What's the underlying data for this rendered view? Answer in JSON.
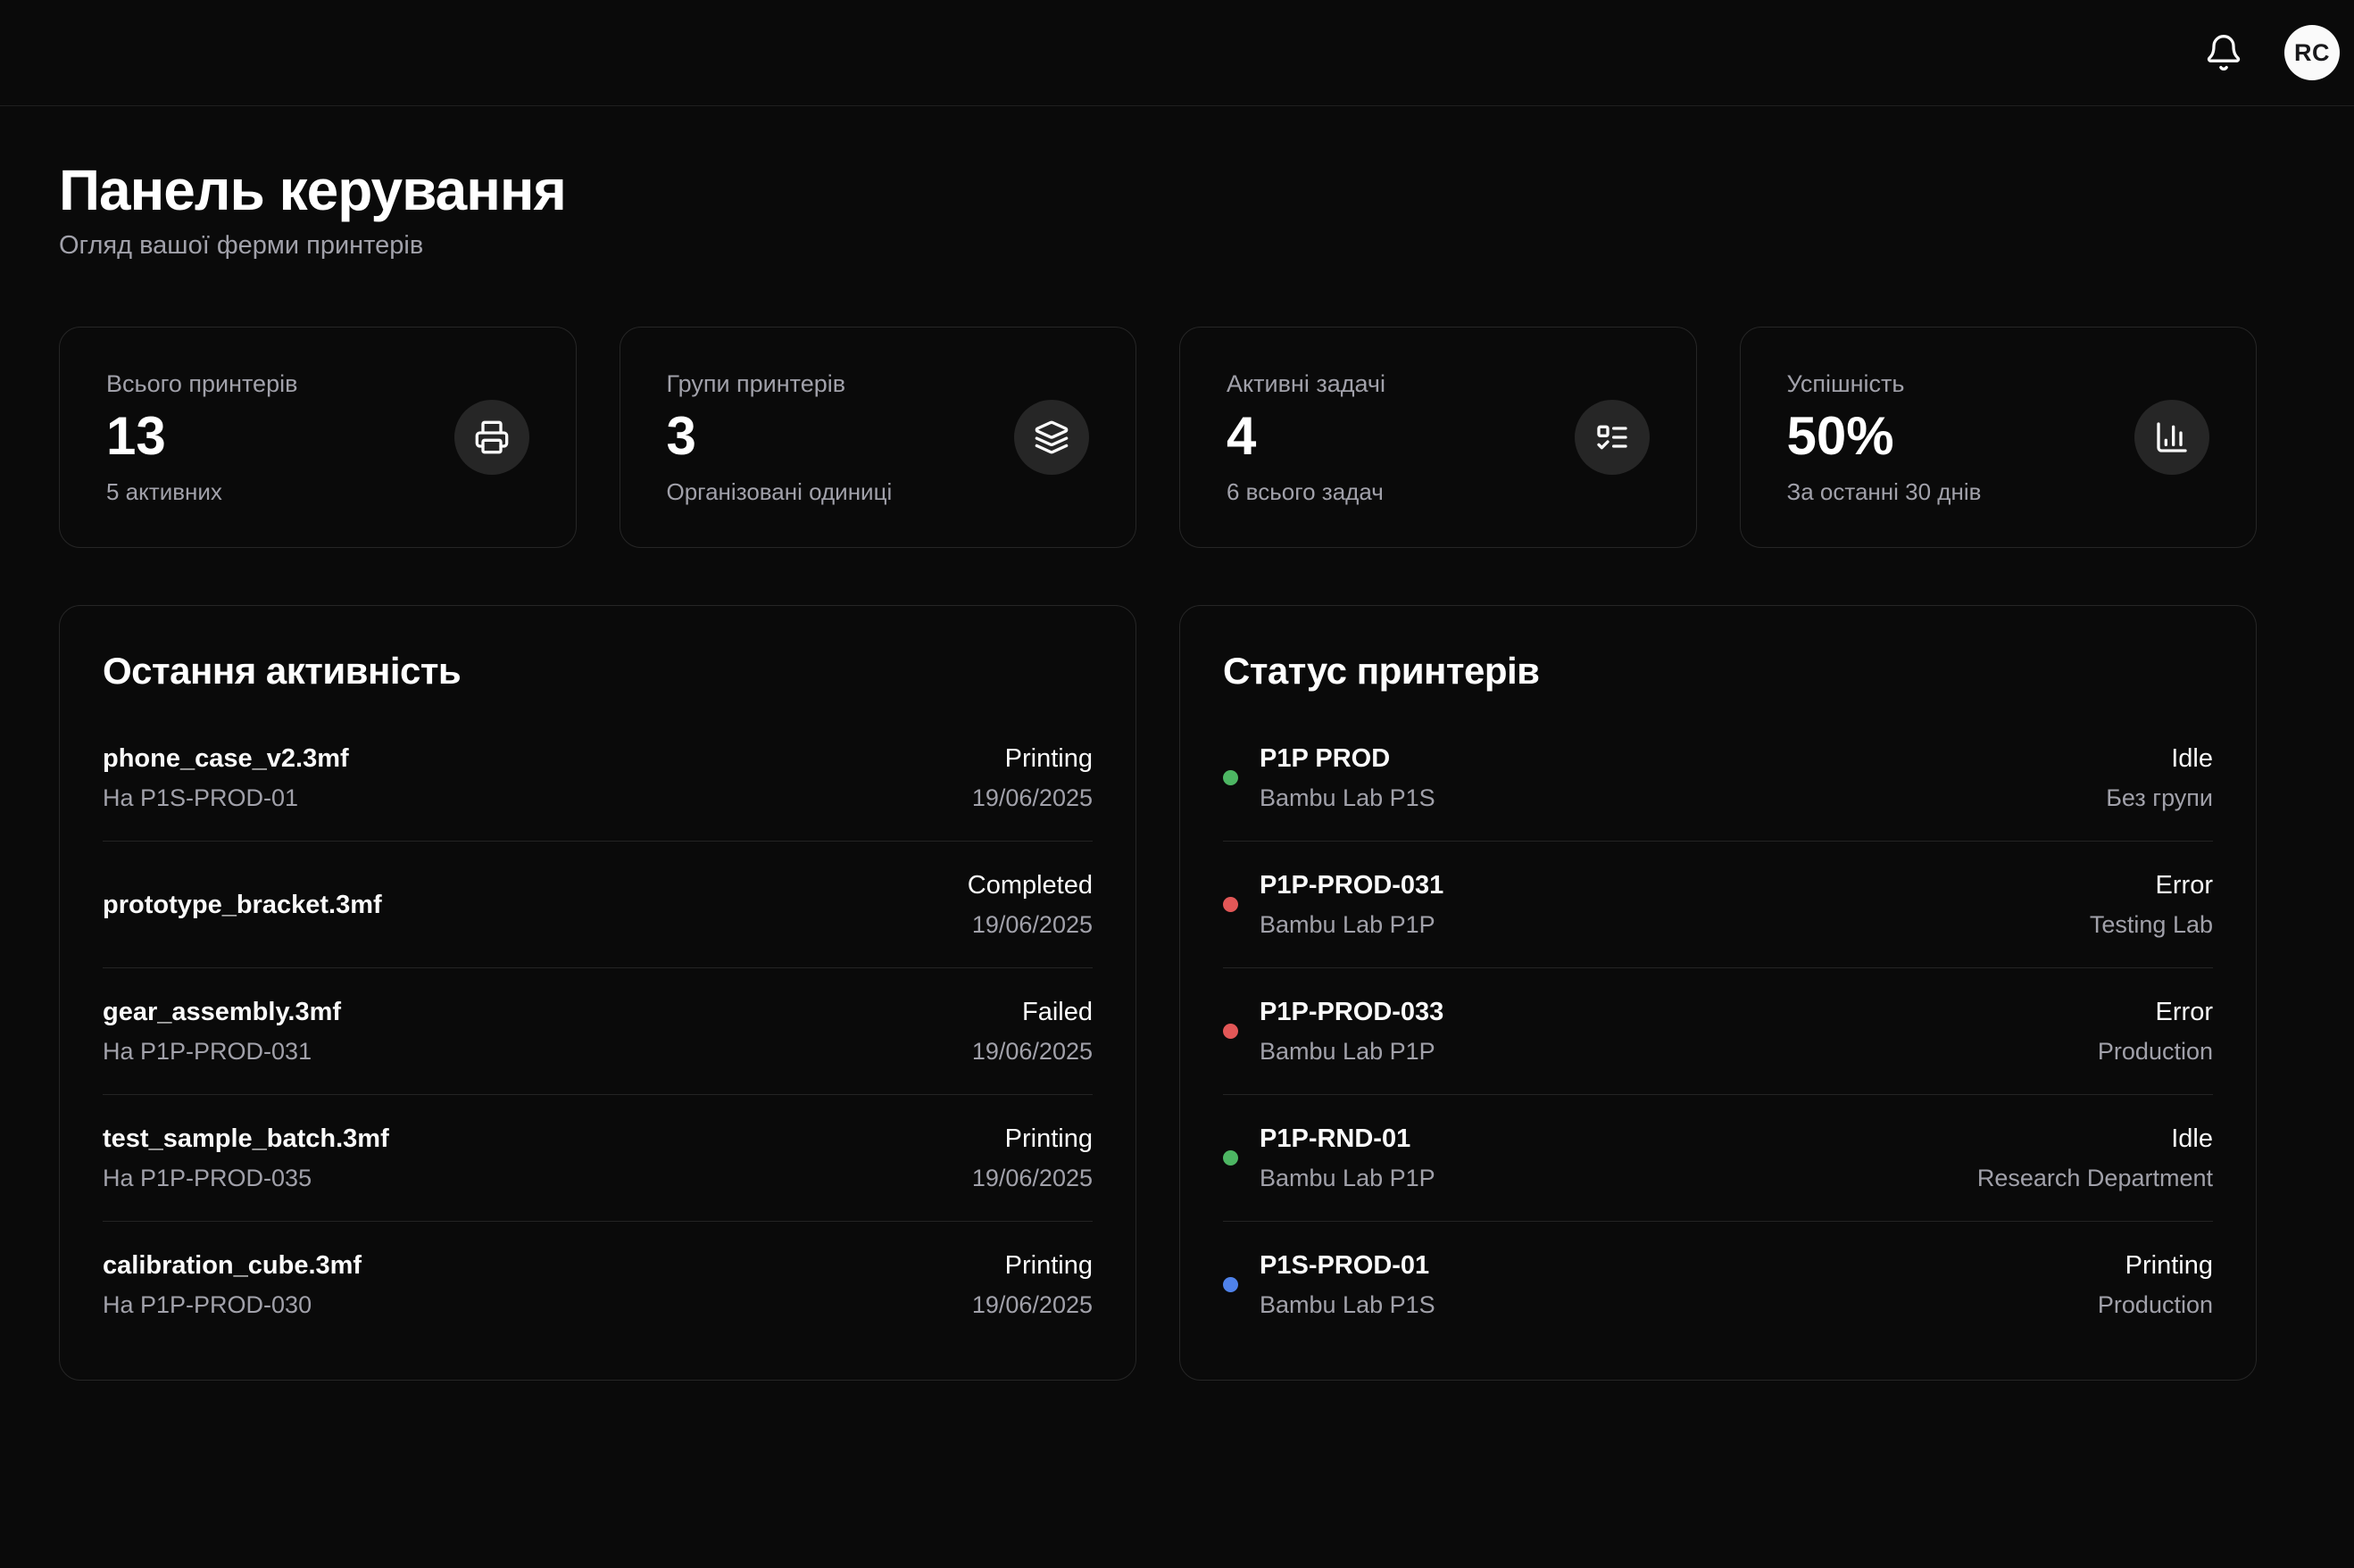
{
  "header": {
    "avatar_initials": "RC"
  },
  "page": {
    "title": "Панель керування",
    "subtitle": "Огляд вашої ферми принтерів"
  },
  "stats": [
    {
      "label": "Всього принтерів",
      "value": "13",
      "sub": "5 активних",
      "icon": "printer-icon"
    },
    {
      "label": "Групи принтерів",
      "value": "3",
      "sub": "Організовані одиниці",
      "icon": "layers-icon"
    },
    {
      "label": "Активні задачі",
      "value": "4",
      "sub": "6 всього задач",
      "icon": "task-list-icon"
    },
    {
      "label": "Успішність",
      "value": "50%",
      "sub": "За останні 30 днів",
      "icon": "bar-chart-icon"
    }
  ],
  "activity": {
    "title": "Остання активність",
    "items": [
      {
        "file": "phone_case_v2.3mf",
        "target": "На P1S-PROD-01",
        "status": "Printing",
        "date": "19/06/2025"
      },
      {
        "file": "prototype_bracket.3mf",
        "target": "",
        "status": "Completed",
        "date": "19/06/2025"
      },
      {
        "file": "gear_assembly.3mf",
        "target": "На P1P-PROD-031",
        "status": "Failed",
        "date": "19/06/2025"
      },
      {
        "file": "test_sample_batch.3mf",
        "target": "На P1P-PROD-035",
        "status": "Printing",
        "date": "19/06/2025"
      },
      {
        "file": "calibration_cube.3mf",
        "target": "На P1P-PROD-030",
        "status": "Printing",
        "date": "19/06/2025"
      }
    ]
  },
  "printers": {
    "title": "Статус принтерів",
    "items": [
      {
        "name": "P1P PROD",
        "model": "Bambu Lab P1S",
        "status": "Idle",
        "group": "Без групи",
        "status_color": "#4db663"
      },
      {
        "name": "P1P-PROD-031",
        "model": "Bambu Lab P1P",
        "status": "Error",
        "group": "Testing Lab",
        "status_color": "#e25757"
      },
      {
        "name": "P1P-PROD-033",
        "model": "Bambu Lab P1P",
        "status": "Error",
        "group": "Production",
        "status_color": "#e25757"
      },
      {
        "name": "P1P-RND-01",
        "model": "Bambu Lab P1P",
        "status": "Idle",
        "group": "Research Department",
        "status_color": "#4db663"
      },
      {
        "name": "P1S-PROD-01",
        "model": "Bambu Lab P1S",
        "status": "Printing",
        "group": "Production",
        "status_color": "#4f82ea"
      }
    ]
  },
  "colors": {
    "background": "#0a0a0a",
    "card_border": "#262626",
    "primary_text": "#fafafa",
    "muted_text": "#a1a1aa",
    "icon_circle_bg": "#262626",
    "status_green": "#4db663",
    "status_red": "#e25757",
    "status_blue": "#4f82ea"
  }
}
